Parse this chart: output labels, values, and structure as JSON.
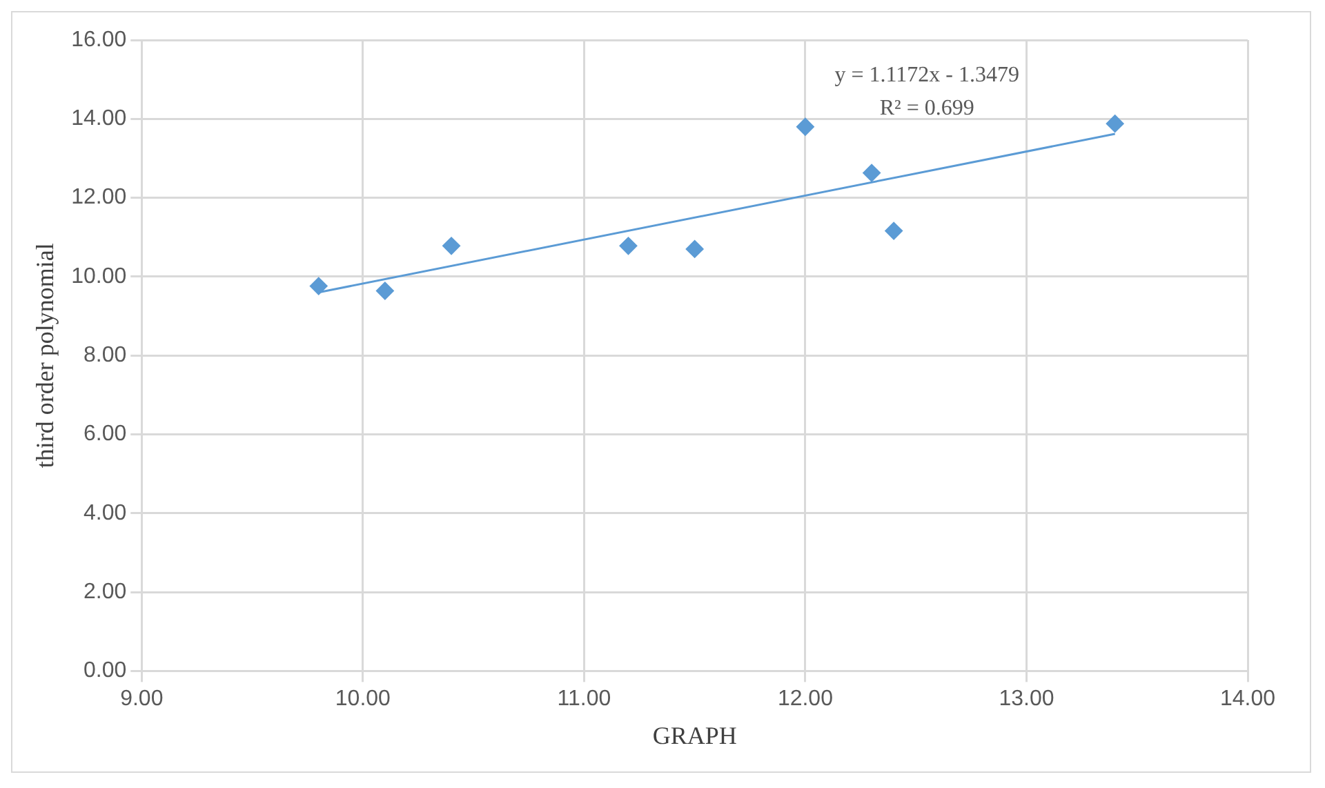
{
  "chart_data": {
    "type": "scatter",
    "xlabel": "GRAPH",
    "ylabel": "third order polynomial",
    "xlim": [
      9,
      14
    ],
    "xticks": [
      {
        "value": 9,
        "label": "9.00"
      },
      {
        "value": 10,
        "label": "10.00"
      },
      {
        "value": 11,
        "label": "11.00"
      },
      {
        "value": 12,
        "label": "12.00"
      },
      {
        "value": 13,
        "label": "13.00"
      },
      {
        "value": 14,
        "label": "14.00"
      }
    ],
    "ylim": [
      0,
      16
    ],
    "yticks": [
      {
        "value": 0,
        "label": "0.00"
      },
      {
        "value": 2,
        "label": "2.00"
      },
      {
        "value": 4,
        "label": "4.00"
      },
      {
        "value": 6,
        "label": "6.00"
      },
      {
        "value": 8,
        "label": "8.00"
      },
      {
        "value": 10,
        "label": "10.00"
      },
      {
        "value": 12,
        "label": "12.00"
      },
      {
        "value": 14,
        "label": "14.00"
      },
      {
        "value": 16,
        "label": "16.00"
      }
    ],
    "grid": true,
    "legend": false,
    "marker": "diamond",
    "series": [
      {
        "type": "scatter",
        "color": "#5b9bd5",
        "x": [
          9.8,
          10.1,
          10.4,
          11.2,
          11.5,
          12.0,
          12.3,
          12.4,
          13.4
        ],
        "values": [
          9.76,
          9.64,
          10.78,
          10.78,
          10.7,
          13.8,
          12.63,
          11.16,
          13.88
        ]
      },
      {
        "type": "line",
        "color": "#5b9bd5",
        "marker": "none",
        "line_style": "solid",
        "x": [
          9.8,
          13.4
        ],
        "values": [
          9.6,
          13.62
        ]
      }
    ],
    "annotations": [
      "y = 1.1172x - 1.3479",
      "R² = 0.699"
    ]
  }
}
